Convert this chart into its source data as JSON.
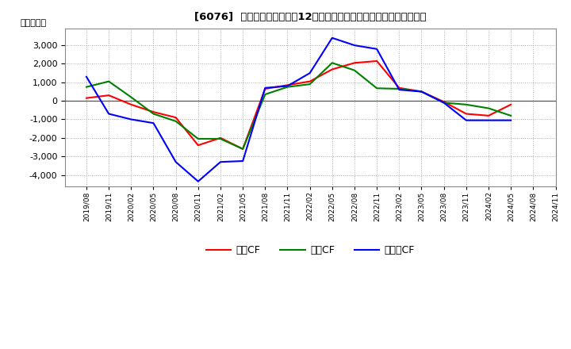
{
  "title": "[6076]  キャッシュフローの12か月移動合計の対前年同期増減額の推移",
  "ylabel": "（百万円）",
  "background_color": "#ffffff",
  "plot_bg_color": "#ffffff",
  "grid_color": "#aaaaaa",
  "x_labels": [
    "2019/08",
    "2019/11",
    "2020/02",
    "2020/05",
    "2020/08",
    "2020/11",
    "2021/02",
    "2021/05",
    "2021/08",
    "2021/11",
    "2022/02",
    "2022/05",
    "2022/08",
    "2022/11",
    "2023/02",
    "2023/05",
    "2023/08",
    "2023/11",
    "2024/02",
    "2024/05",
    "2024/08",
    "2024/11"
  ],
  "営業CF": [
    150,
    300,
    -200,
    -600,
    -900,
    -2400,
    -2000,
    -2600,
    650,
    850,
    1050,
    1700,
    2050,
    2150,
    700,
    500,
    -50,
    -700,
    -800,
    -200,
    null,
    null
  ],
  "投資CF": [
    750,
    1050,
    200,
    -700,
    -1100,
    -2050,
    -2050,
    -2600,
    350,
    750,
    900,
    2050,
    1650,
    680,
    650,
    500,
    -100,
    -200,
    -400,
    -800,
    null,
    null
  ],
  "フリーCF": [
    1300,
    -700,
    -1000,
    -1200,
    -3300,
    -4350,
    -3300,
    -3250,
    700,
    800,
    1500,
    3400,
    3000,
    2800,
    600,
    500,
    -100,
    -1050,
    -1050,
    -1050,
    null,
    null
  ],
  "line_colors": {
    "営業CF": "#ff0000",
    "投資CF": "#008000",
    "フリーCF": "#0000ff"
  },
  "ylim": [
    -4600,
    3900
  ],
  "yticks": [
    -4000,
    -3000,
    -2000,
    -1000,
    0,
    1000,
    2000,
    3000
  ],
  "legend_labels": [
    "営業CF",
    "投資CF",
    "フリーCF"
  ]
}
